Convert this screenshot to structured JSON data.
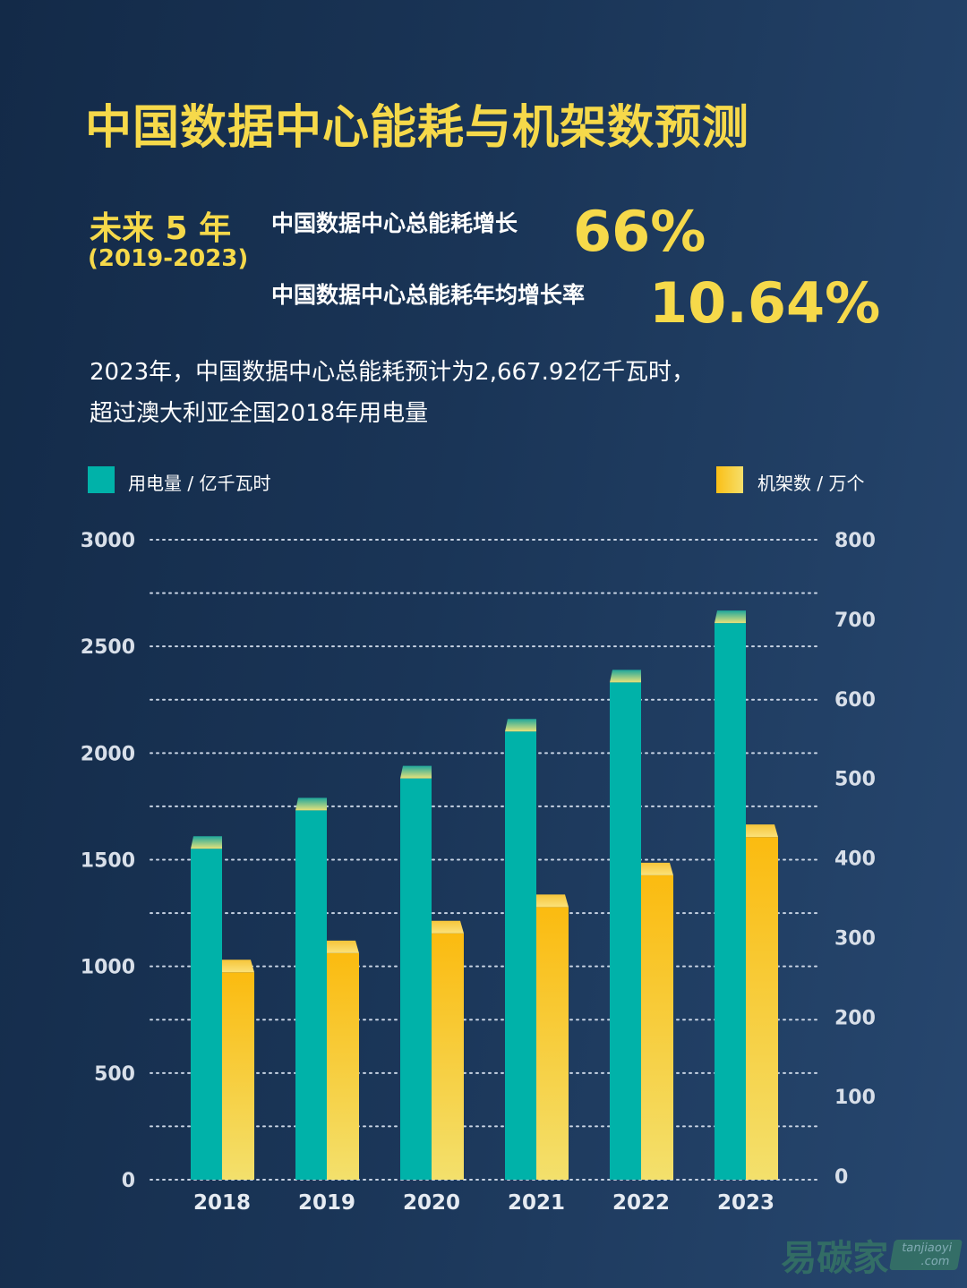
{
  "header": {
    "title": "中国数据中心能耗与机架数预测",
    "period": "未来 5 年",
    "period_years": "(2019-2023)",
    "stats": [
      {
        "label": "中国数据中心总能耗增长",
        "value": "66%"
      },
      {
        "label": "中国数据中心总能耗年均增长率",
        "value": "10.64%"
      }
    ],
    "note_lines": [
      "2023年，中国数据中心总能耗预计为2,667.92亿千瓦时，",
      "超过澳大利亚全国2018年用电量"
    ]
  },
  "watermark": {
    "cn": "易碳家",
    "en": "tanjiaoyi",
    "domain": ".com"
  },
  "colors": {
    "background": "#1a3557",
    "accent": "#f6d94a",
    "teal": "#00b2a9",
    "yellow": "#fbbf16"
  },
  "chart_data": {
    "type": "bar",
    "categories": [
      "2018",
      "2019",
      "2020",
      "2021",
      "2022",
      "2023"
    ],
    "series": [
      {
        "name": "用电量 / 亿千瓦时",
        "axis": "left",
        "color": "#00b2a9",
        "values": [
          1610,
          1790,
          1940,
          2160,
          2390,
          2667.92
        ]
      },
      {
        "name": "机架数 / 万个",
        "axis": "right",
        "color": "#fbbf16",
        "values": [
          272,
          296,
          321,
          354,
          394,
          442
        ]
      }
    ],
    "y_left": {
      "lim": [
        0,
        3000
      ],
      "ticks": [
        0,
        500,
        1000,
        1500,
        2000,
        2500,
        3000
      ]
    },
    "y_right": {
      "lim": [
        0,
        800
      ],
      "ticks": [
        0,
        100,
        200,
        300,
        400,
        500,
        600,
        700,
        800
      ]
    },
    "grid": "dotted horizontal",
    "legend": "top"
  }
}
